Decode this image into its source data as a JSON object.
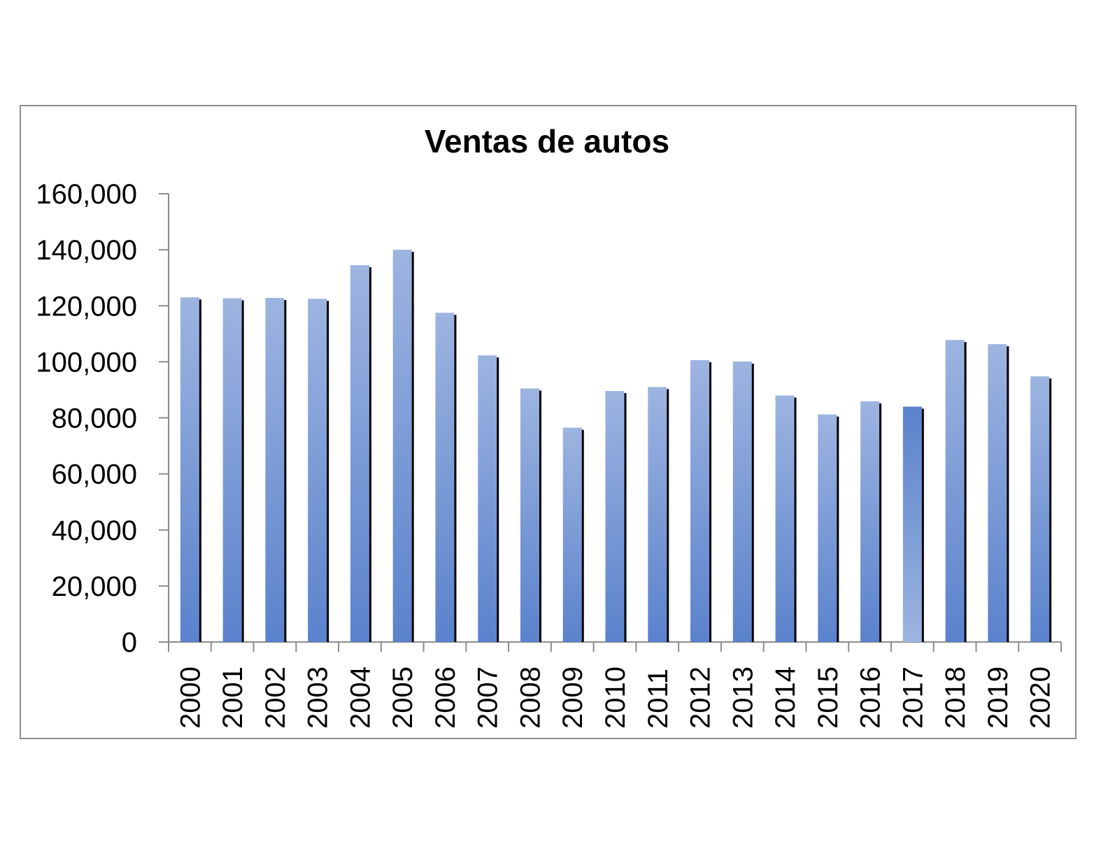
{
  "chart_data": {
    "type": "bar",
    "title": "Ventas de autos",
    "xlabel": "",
    "ylabel": "",
    "categories": [
      "2000",
      "2001",
      "2002",
      "2003",
      "2004",
      "2005",
      "2006",
      "2007",
      "2008",
      "2009",
      "2010",
      "2011",
      "2012",
      "2013",
      "2014",
      "2015",
      "2016",
      "2017",
      "2018",
      "2019",
      "2020"
    ],
    "values": [
      123000,
      122700,
      122800,
      122500,
      134500,
      140000,
      117500,
      102300,
      90500,
      76500,
      89600,
      91000,
      100600,
      100100,
      88000,
      81200,
      85900,
      84000,
      107800,
      106300,
      94800
    ],
    "ylim": [
      0,
      160000
    ],
    "y_ticks": [
      "0",
      "20,000",
      "40,000",
      "60,000",
      "80,000",
      "100,000",
      "120,000",
      "140,000",
      "160,000"
    ],
    "highlight_category": "2017",
    "grid": false,
    "legend": "none",
    "colors": {
      "bar_top": "#9db4e0",
      "bar_bottom": "#5a82cc",
      "highlight_top": "#5a82cc",
      "highlight_bottom": "#9db4e0",
      "shadow": "#000000",
      "axis": "#8c8c8c"
    }
  }
}
